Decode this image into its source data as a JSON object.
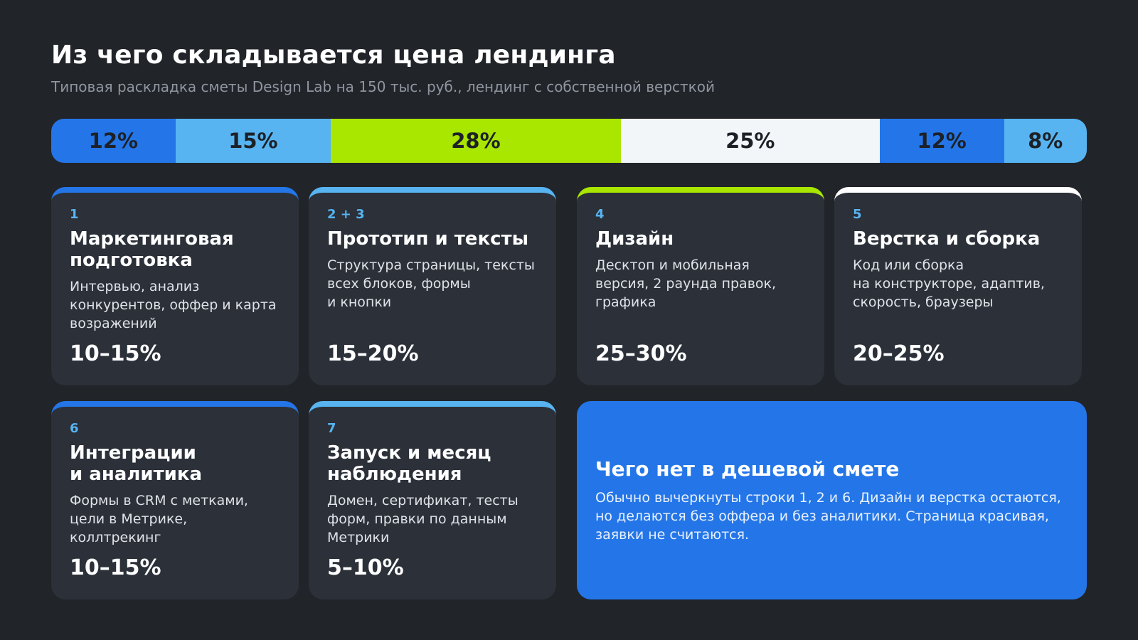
{
  "header": {
    "title": "Из чего складывается цена лендинга",
    "subtitle": "Типовая раскладка сметы Design Lab на 150 тыс. руб., лендинг с собственной версткой"
  },
  "colors": {
    "background": "#212429",
    "card": "#2b3039",
    "blue": "#2476e8",
    "light_blue": "#57b4f1",
    "lime": "#a9e600",
    "white": "#f3f6f9"
  },
  "budget_bar": {
    "segments": [
      {
        "label": "12%",
        "value": 12,
        "color": "#2476e8"
      },
      {
        "label": "15%",
        "value": 15,
        "color": "#57b4f1"
      },
      {
        "label": "28%",
        "value": 28,
        "color": "#a9e600"
      },
      {
        "label": "25%",
        "value": 25,
        "color": "#f3f6f9"
      },
      {
        "label": "12%",
        "value": 12,
        "color": "#2476e8"
      },
      {
        "label": "8%",
        "value": 8,
        "color": "#57b4f1"
      }
    ]
  },
  "cards": [
    {
      "num": "1",
      "title": "Маркетинговая\nподготовка",
      "desc": "Интервью, анализ\nконкурентов, оффер и карта\nвозражений",
      "range": "10–15%",
      "accent": "#2476e8"
    },
    {
      "num": "2 + 3",
      "title": "Прототип и тексты",
      "desc": "Структура страницы, тексты\nвсех блоков, формы\nи кнопки",
      "range": "15–20%",
      "accent": "#57b4f1"
    },
    {
      "num": "4",
      "title": "Дизайн",
      "desc": "Десктоп и мобильная\nверсия, 2 раунда правок,\nграфика",
      "range": "25–30%",
      "accent": "#a9e600"
    },
    {
      "num": "5",
      "title": "Верстка и сборка",
      "desc": "Код или сборка\nна конструкторе, адаптив,\nскорость, браузеры",
      "range": "20–25%",
      "accent": "#ffffff"
    },
    {
      "num": "6",
      "title": "Интеграции\nи аналитика",
      "desc": "Формы в CRM с метками,\nцели в Метрике,\nколлтрекинг",
      "range": "10–15%",
      "accent": "#2476e8"
    },
    {
      "num": "7",
      "title": "Запуск и месяц\nнаблюдения",
      "desc": "Домен, сертификат, тесты\nформ, правки по данным\nМетрики",
      "range": "5–10%",
      "accent": "#57b4f1"
    }
  ],
  "note": {
    "title": "Чего нет в дешевой смете",
    "text": "Обычно вычеркнуты строки 1, 2 и 6. Дизайн и верстка остаются,\nно делаются без оффера и без аналитики. Страница красивая,\nзаявки не считаются."
  }
}
